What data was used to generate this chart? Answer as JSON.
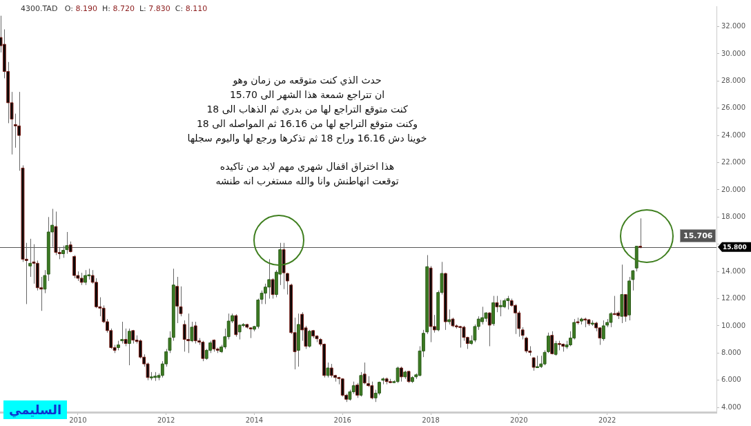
{
  "chart_data": {
    "type": "candlestick",
    "title": "4300.TAD   O: 8.190  H: 8.720  L: 7.830  C: 8.110",
    "annotations": [
      "حدث الذي كنت متوقعه من زمان وهو",
      "ان تتراجع شمعة هذا الشهر الى 15.70",
      "كنت متوقع التراجع لها من بدري ثم الذهاب الى 18",
      "وكنت متوقع التراجع لها من 16.16 ثم المواصله الى 18",
      "خوينا دش 16.16 وراح 18 ثم تذكرها ورجع لها واليوم سجلها",
      "هذا اختراق اقفال شهري مهم لابد من تاكيده",
      "توقعت انهاطنش وانا والله مستغرب انه طنشه",
      "15.706",
      "السليمي"
    ],
    "x": [
      "2008-04",
      "2008-05",
      "2008-06",
      "2008-07",
      "2008-08",
      "2008-09",
      "2008-10",
      "2008-11",
      "2008-12",
      "2009-01",
      "2009-02",
      "2009-03",
      "2009-04",
      "2009-05",
      "2009-06",
      "2009-07",
      "2009-08",
      "2009-09",
      "2009-10",
      "2009-11",
      "2009-12",
      "2010-01",
      "2010-02",
      "2010-03",
      "2010-04",
      "2010-05",
      "2010-06",
      "2010-07",
      "2010-08",
      "2010-09",
      "2010-10",
      "2010-11",
      "2010-12",
      "2011-01",
      "2011-02",
      "2011-03",
      "2011-04",
      "2011-05",
      "2011-06",
      "2011-07",
      "2011-08",
      "2011-09",
      "2011-10",
      "2011-11",
      "2011-12",
      "2012-01",
      "2012-02",
      "2012-03",
      "2012-04",
      "2012-05",
      "2012-06",
      "2012-07",
      "2012-08",
      "2012-09",
      "2012-10",
      "2012-11",
      "2012-12",
      "2013-01",
      "2013-02",
      "2013-03",
      "2013-04",
      "2013-05",
      "2013-06",
      "2013-07",
      "2013-08",
      "2013-09",
      "2013-10",
      "2013-11",
      "2013-12",
      "2014-01",
      "2014-02",
      "2014-03",
      "2014-04",
      "2014-05",
      "2014-06",
      "2014-07",
      "2014-08",
      "2014-09",
      "2014-10",
      "2014-11",
      "2014-12",
      "2015-01",
      "2015-02",
      "2015-03",
      "2015-04",
      "2015-05",
      "2015-06",
      "2015-07",
      "2015-08",
      "2015-09",
      "2015-10",
      "2015-11",
      "2015-12",
      "2016-01",
      "2016-02",
      "2016-03",
      "2016-04",
      "2016-05",
      "2016-06",
      "2016-07",
      "2016-08",
      "2016-09",
      "2016-10",
      "2016-11",
      "2016-12",
      "2017-01",
      "2017-02",
      "2017-03",
      "2017-04",
      "2017-05",
      "2017-06",
      "2017-07",
      "2017-08",
      "2017-09",
      "2017-10",
      "2017-11",
      "2017-12",
      "2018-01",
      "2018-02",
      "2018-03",
      "2018-04",
      "2018-05",
      "2018-06",
      "2018-07",
      "2018-08",
      "2018-09",
      "2018-10",
      "2018-11",
      "2018-12",
      "2019-01",
      "2019-02",
      "2019-03",
      "2019-04",
      "2019-05",
      "2019-06",
      "2019-07",
      "2019-08",
      "2019-09",
      "2019-10",
      "2019-11",
      "2019-12",
      "2020-01",
      "2020-02",
      "2020-03",
      "2020-04",
      "2020-05",
      "2020-06",
      "2020-07",
      "2020-08",
      "2020-09",
      "2020-10",
      "2020-11",
      "2020-12",
      "2021-01",
      "2021-02",
      "2021-03",
      "2021-04",
      "2021-05",
      "2021-06",
      "2021-07",
      "2021-08",
      "2021-09",
      "2021-10",
      "2021-11",
      "2021-12",
      "2022-01",
      "2022-02",
      "2022-03",
      "2022-04",
      "2022-05",
      "2022-06",
      "2022-07",
      "2022-08",
      "2022-09",
      "2022-10"
    ],
    "ohlc": [
      [
        31.2,
        32.8,
        30.1,
        30.6
      ],
      [
        30.7,
        31.8,
        28.2,
        28.7
      ],
      [
        28.7,
        29.4,
        24.9,
        26.4
      ],
      [
        26.4,
        27.2,
        22.6,
        25.2
      ],
      [
        24.8,
        25.6,
        23.1,
        24.7
      ],
      [
        24.7,
        27.2,
        21.4,
        24.0
      ],
      [
        21.6,
        21.8,
        14.7,
        14.9
      ],
      [
        14.9,
        16.1,
        11.6,
        14.8
      ],
      [
        14.4,
        16.4,
        13.6,
        14.6
      ],
      [
        14.7,
        16.0,
        13.1,
        14.6
      ],
      [
        14.6,
        14.8,
        12.6,
        12.8
      ],
      [
        12.8,
        13.6,
        11.1,
        12.7
      ],
      [
        12.7,
        14.1,
        12.4,
        13.7
      ],
      [
        13.8,
        18.0,
        13.3,
        16.9
      ],
      [
        16.9,
        18.6,
        15.8,
        17.4
      ],
      [
        17.3,
        18.4,
        15.2,
        15.4
      ],
      [
        15.4,
        15.8,
        14.9,
        15.3
      ],
      [
        15.3,
        15.9,
        15.0,
        15.55
      ],
      [
        15.6,
        16.9,
        15.3,
        15.9
      ],
      [
        15.95,
        16.2,
        15.4,
        15.45
      ],
      [
        15.1,
        15.2,
        13.5,
        13.7
      ],
      [
        13.7,
        14.0,
        13.3,
        13.5
      ],
      [
        13.5,
        13.9,
        13.0,
        13.2
      ],
      [
        13.2,
        14.1,
        13.0,
        13.7
      ],
      [
        13.7,
        14.2,
        13.4,
        13.75
      ],
      [
        13.7,
        14.1,
        13.1,
        13.2
      ],
      [
        13.2,
        13.5,
        11.3,
        11.4
      ],
      [
        11.4,
        12.1,
        10.7,
        11.3
      ],
      [
        11.3,
        11.5,
        10.2,
        10.3
      ],
      [
        10.3,
        10.5,
        9.5,
        9.65
      ],
      [
        9.65,
        9.8,
        8.3,
        8.4
      ],
      [
        8.4,
        8.6,
        8.0,
        8.2
      ],
      [
        8.4,
        8.9,
        8.2,
        8.6
      ],
      [
        8.9,
        10.3,
        8.7,
        9.0
      ],
      [
        9.0,
        9.8,
        8.5,
        8.7
      ],
      [
        8.7,
        9.8,
        7.1,
        9.6
      ],
      [
        9.65,
        9.7,
        8.7,
        8.95
      ],
      [
        8.95,
        9.3,
        8.7,
        8.85
      ],
      [
        8.9,
        9.0,
        7.6,
        7.7
      ],
      [
        7.7,
        7.9,
        7.0,
        7.2
      ],
      [
        7.2,
        7.3,
        6.0,
        6.2
      ],
      [
        6.2,
        6.6,
        6.0,
        6.25
      ],
      [
        6.2,
        6.6,
        5.95,
        6.3
      ],
      [
        6.2,
        6.5,
        6.0,
        6.35
      ],
      [
        6.35,
        7.4,
        6.2,
        7.2
      ],
      [
        7.2,
        8.3,
        7.0,
        8.1
      ],
      [
        8.2,
        9.6,
        8.0,
        9.1
      ],
      [
        9.15,
        14.2,
        8.9,
        13.0
      ],
      [
        12.9,
        13.6,
        10.2,
        11.45
      ],
      [
        11.4,
        12.9,
        10.7,
        10.9
      ],
      [
        10.1,
        10.4,
        8.1,
        9.0
      ],
      [
        9.0,
        10.9,
        8.0,
        8.9
      ],
      [
        8.9,
        10.3,
        8.8,
        9.9
      ],
      [
        10.0,
        10.3,
        8.7,
        8.9
      ],
      [
        8.9,
        9.1,
        8.6,
        8.8
      ],
      [
        8.8,
        8.9,
        7.4,
        7.6
      ],
      [
        7.6,
        8.3,
        7.5,
        8.2
      ],
      [
        8.2,
        8.9,
        8.0,
        8.75
      ],
      [
        8.95,
        9.0,
        8.1,
        8.3
      ],
      [
        8.3,
        8.4,
        8.0,
        8.2
      ],
      [
        8.1,
        8.6,
        8.0,
        8.45
      ],
      [
        8.45,
        9.8,
        8.3,
        9.2
      ],
      [
        9.2,
        10.9,
        9.0,
        10.35
      ],
      [
        10.35,
        10.9,
        10.2,
        10.75
      ],
      [
        10.75,
        10.85,
        9.2,
        9.35
      ],
      [
        9.55,
        10.1,
        9.0,
        10.05
      ],
      [
        10.05,
        10.2,
        9.9,
        10.1
      ],
      [
        10.1,
        10.15,
        9.8,
        9.9
      ],
      [
        9.85,
        9.9,
        9.1,
        9.8
      ],
      [
        9.75,
        10.0,
        9.6,
        9.95
      ],
      [
        9.95,
        12.0,
        9.8,
        11.9
      ],
      [
        11.95,
        12.6,
        11.6,
        12.4
      ],
      [
        12.4,
        13.1,
        11.6,
        12.85
      ],
      [
        12.85,
        14.9,
        12.0,
        13.4
      ],
      [
        13.4,
        13.5,
        12.0,
        12.3
      ],
      [
        12.3,
        14.1,
        12.1,
        13.95
      ],
      [
        13.8,
        16.1,
        13.0,
        15.6
      ],
      [
        15.6,
        16.1,
        12.7,
        13.9
      ],
      [
        13.85,
        13.9,
        12.3,
        13.3
      ],
      [
        13.0,
        13.1,
        9.4,
        9.5
      ],
      [
        9.5,
        10.6,
        6.8,
        8.1
      ],
      [
        8.2,
        10.9,
        7.0,
        10.1
      ],
      [
        10.85,
        11.0,
        8.9,
        9.7
      ],
      [
        9.85,
        10.0,
        8.3,
        8.5
      ],
      [
        8.5,
        9.7,
        8.4,
        9.6
      ],
      [
        9.65,
        9.7,
        9.1,
        9.25
      ],
      [
        9.25,
        9.3,
        8.8,
        9.05
      ],
      [
        9.0,
        9.1,
        8.5,
        8.65
      ],
      [
        8.65,
        8.7,
        6.2,
        6.35
      ],
      [
        6.35,
        7.3,
        6.2,
        6.9
      ],
      [
        6.9,
        7.2,
        6.2,
        6.35
      ],
      [
        6.35,
        6.4,
        5.9,
        6.2
      ],
      [
        6.2,
        6.25,
        5.7,
        6.15
      ],
      [
        6.1,
        6.15,
        4.8,
        4.9
      ],
      [
        4.9,
        5.0,
        4.4,
        4.6
      ],
      [
        4.6,
        5.3,
        4.5,
        5.15
      ],
      [
        5.15,
        5.9,
        5.0,
        5.6
      ],
      [
        5.65,
        5.8,
        4.7,
        4.9
      ],
      [
        4.9,
        6.6,
        4.8,
        6.35
      ],
      [
        6.45,
        7.3,
        5.7,
        5.8
      ],
      [
        5.75,
        6.3,
        5.5,
        5.6
      ],
      [
        5.6,
        5.9,
        4.6,
        4.7
      ],
      [
        4.7,
        5.3,
        4.4,
        5.05
      ],
      [
        5.05,
        5.9,
        4.9,
        5.85
      ],
      [
        6.0,
        6.2,
        5.7,
        6.1
      ],
      [
        6.1,
        6.2,
        5.7,
        5.9
      ],
      [
        5.9,
        6.1,
        5.8,
        5.85
      ],
      [
        5.85,
        6.0,
        5.8,
        5.9
      ],
      [
        5.9,
        7.0,
        5.8,
        6.9
      ],
      [
        6.9,
        7.0,
        5.9,
        6.25
      ],
      [
        6.25,
        6.7,
        6.1,
        6.6
      ],
      [
        6.65,
        6.7,
        5.8,
        5.9
      ],
      [
        5.9,
        6.3,
        5.8,
        6.2
      ],
      [
        6.25,
        6.5,
        6.1,
        6.4
      ],
      [
        6.35,
        8.5,
        6.3,
        8.15
      ],
      [
        8.15,
        9.7,
        7.7,
        9.45
      ],
      [
        9.55,
        15.2,
        9.4,
        14.35
      ],
      [
        14.25,
        14.4,
        8.8,
        9.95
      ],
      [
        9.95,
        10.8,
        9.5,
        9.7
      ],
      [
        9.7,
        12.6,
        9.6,
        12.45
      ],
      [
        12.45,
        14.7,
        12.3,
        13.85
      ],
      [
        13.85,
        13.9,
        9.7,
        10.3
      ],
      [
        10.3,
        11.2,
        10.1,
        10.45
      ],
      [
        10.5,
        10.6,
        9.9,
        10.0
      ],
      [
        10.0,
        10.1,
        9.8,
        9.95
      ],
      [
        9.95,
        10.0,
        8.4,
        9.9
      ],
      [
        9.9,
        10.0,
        8.9,
        9.15
      ],
      [
        9.15,
        9.2,
        8.3,
        8.7
      ],
      [
        8.7,
        9.3,
        8.6,
        8.9
      ],
      [
        8.95,
        10.1,
        8.8,
        9.95
      ],
      [
        9.95,
        10.7,
        9.7,
        10.5
      ],
      [
        10.3,
        11.4,
        10.1,
        10.6
      ],
      [
        10.55,
        11.0,
        10.3,
        10.95
      ],
      [
        10.95,
        11.0,
        8.5,
        10.05
      ],
      [
        10.15,
        12.2,
        10.0,
        11.7
      ],
      [
        11.7,
        12.2,
        11.0,
        11.4
      ],
      [
        11.4,
        11.9,
        10.7,
        11.5
      ],
      [
        11.4,
        12.0,
        11.3,
        11.85
      ],
      [
        11.85,
        12.2,
        11.2,
        12.0
      ],
      [
        11.85,
        12.0,
        11.4,
        11.5
      ],
      [
        11.5,
        11.6,
        9.4,
        10.95
      ],
      [
        10.95,
        11.1,
        9.2,
        9.8
      ],
      [
        9.7,
        9.9,
        9.0,
        9.3
      ],
      [
        9.1,
        9.2,
        8.0,
        8.15
      ],
      [
        8.15,
        8.5,
        7.8,
        8.05
      ],
      [
        7.65,
        7.7,
        6.7,
        6.95
      ],
      [
        6.95,
        7.8,
        6.9,
        7.0
      ],
      [
        7.0,
        7.8,
        6.9,
        7.2
      ],
      [
        7.2,
        8.2,
        7.1,
        8.05
      ],
      [
        8.1,
        9.5,
        8.0,
        9.25
      ],
      [
        9.3,
        9.6,
        7.9,
        7.95
      ],
      [
        7.9,
        8.9,
        7.8,
        8.7
      ],
      [
        8.7,
        8.9,
        8.2,
        8.65
      ],
      [
        8.65,
        8.7,
        8.1,
        8.5
      ],
      [
        8.45,
        8.9,
        8.3,
        8.6
      ],
      [
        8.6,
        9.6,
        8.5,
        9.1
      ],
      [
        9.1,
        10.5,
        9.0,
        10.25
      ],
      [
        10.3,
        10.6,
        10.1,
        10.25
      ],
      [
        10.35,
        10.6,
        10.1,
        10.5
      ],
      [
        10.5,
        10.6,
        9.9,
        10.45
      ],
      [
        10.45,
        10.5,
        10.0,
        10.15
      ],
      [
        10.2,
        10.4,
        10.0,
        10.2
      ],
      [
        10.2,
        10.3,
        9.6,
        9.85
      ],
      [
        9.85,
        9.9,
        8.6,
        9.1
      ],
      [
        9.05,
        10.4,
        8.9,
        10.0
      ],
      [
        10.05,
        10.5,
        9.9,
        10.25
      ],
      [
        10.25,
        11.0,
        9.9,
        10.9
      ],
      [
        10.9,
        12.2,
        10.8,
        10.85
      ],
      [
        10.95,
        11.1,
        10.5,
        10.75
      ],
      [
        10.7,
        14.5,
        10.2,
        12.3
      ],
      [
        12.3,
        12.3,
        10.3,
        10.7
      ],
      [
        10.8,
        13.6,
        10.4,
        13.3
      ],
      [
        13.4,
        14.1,
        12.6,
        14.05
      ],
      [
        14.25,
        15.85,
        14.0,
        15.85
      ],
      [
        15.85,
        17.9,
        15.7,
        15.8
      ]
    ],
    "xlim": [
      "2008-03-26",
      "2024-06-24"
    ],
    "xticks": [
      "2010",
      "2012",
      "2014",
      "2016",
      "2018",
      "2020",
      "2022"
    ],
    "ylim": [
      3.65,
      33.5
    ],
    "yticks": [
      {
        "value": 4,
        "label": "4.000"
      },
      {
        "value": 6,
        "label": "6.000"
      },
      {
        "value": 8,
        "label": "8.000"
      },
      {
        "value": 10,
        "label": "10.000"
      },
      {
        "value": 12,
        "label": "12.000"
      },
      {
        "value": 14,
        "label": "14.000"
      },
      {
        "value": 16,
        "label": null
      },
      {
        "value": 18,
        "label": "18.000"
      },
      {
        "value": 20,
        "label": "20.000"
      },
      {
        "value": 22,
        "label": "22.000"
      },
      {
        "value": 24,
        "label": "24.000"
      },
      {
        "value": 26,
        "label": "26.000"
      },
      {
        "value": 28,
        "label": "28.000"
      },
      {
        "value": 30,
        "label": "30.000"
      },
      {
        "value": 32,
        "label": "32.000"
      }
    ],
    "ref_lines": [
      {
        "axis": "y",
        "value": 15.8,
        "label": "15.800",
        "color": "#555555"
      }
    ]
  }
}
